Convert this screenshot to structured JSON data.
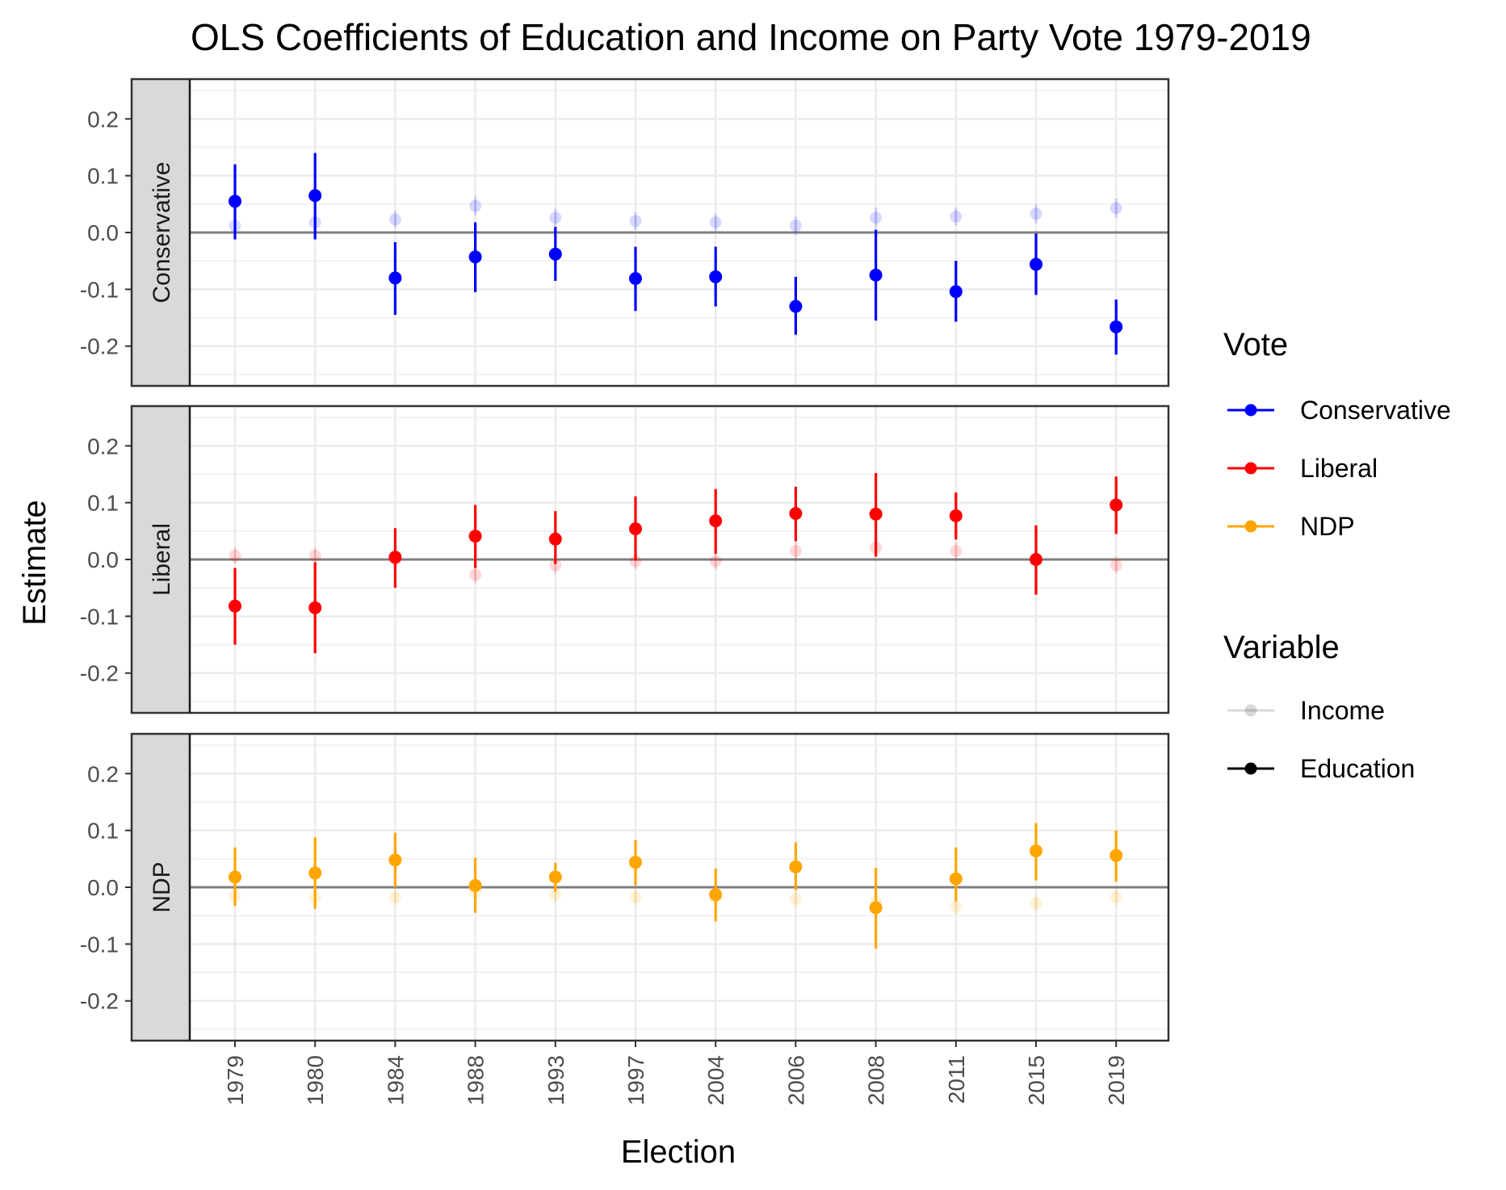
{
  "chart_data": {
    "type": "scatter",
    "title": "OLS Coefficients of Education and Income on Party Vote 1979-2019",
    "xlabel": "Election",
    "ylabel": "Estimate",
    "ylim": [
      -0.27,
      0.27
    ],
    "y_ticks": [
      "0.2",
      "0.1",
      "0.0",
      "-0.1",
      "-0.2"
    ],
    "y_tick_values": [
      0.2,
      0.1,
      0.0,
      -0.1,
      -0.2
    ],
    "categories": [
      "1979",
      "1980",
      "1984",
      "1988",
      "1993",
      "1997",
      "2004",
      "2006",
      "2008",
      "2011",
      "2015",
      "2019"
    ],
    "grid": true,
    "reference_line": 0,
    "legend": {
      "position": "right",
      "vote_title": "Vote",
      "vote_items": [
        {
          "label": "Conservative",
          "color": "#0000ff"
        },
        {
          "label": "Liberal",
          "color": "#ff0000"
        },
        {
          "label": "NDP",
          "color": "#ffa500"
        }
      ],
      "variable_title": "Variable",
      "variable_items": [
        {
          "label": "Income",
          "opacity": 0.15
        },
        {
          "label": "Education",
          "opacity": 1.0
        }
      ]
    },
    "panels": [
      {
        "name": "Conservative",
        "color": "#0000ff",
        "education": {
          "estimate": [
            0.055,
            0.065,
            -0.08,
            -0.043,
            -0.038,
            -0.081,
            -0.078,
            -0.13,
            -0.075,
            -0.104,
            -0.056,
            -0.166
          ],
          "lower": [
            -0.012,
            -0.012,
            -0.145,
            -0.105,
            -0.085,
            -0.138,
            -0.13,
            -0.18,
            -0.155,
            -0.157,
            -0.11,
            -0.215
          ],
          "upper": [
            0.12,
            0.14,
            -0.017,
            0.018,
            0.01,
            -0.025,
            -0.025,
            -0.078,
            0.005,
            -0.05,
            -0.002,
            -0.118
          ]
        },
        "income": {
          "estimate": [
            0.012,
            0.018,
            0.023,
            0.047,
            0.026,
            0.02,
            0.018,
            0.012,
            0.026,
            0.028,
            0.033,
            0.043
          ],
          "lower": [
            -0.004,
            0.002,
            0.008,
            0.03,
            0.01,
            0.004,
            0.002,
            -0.004,
            0.008,
            0.012,
            0.016,
            0.026
          ],
          "upper": [
            0.028,
            0.034,
            0.038,
            0.064,
            0.042,
            0.036,
            0.034,
            0.028,
            0.044,
            0.044,
            0.05,
            0.06
          ]
        }
      },
      {
        "name": "Liberal",
        "color": "#ff0000",
        "education": {
          "estimate": [
            -0.082,
            -0.085,
            0.004,
            0.041,
            0.036,
            0.054,
            0.068,
            0.081,
            0.08,
            0.077,
            0.0,
            0.096
          ],
          "lower": [
            -0.15,
            -0.165,
            -0.05,
            -0.015,
            -0.008,
            -0.002,
            0.01,
            0.032,
            0.005,
            0.035,
            -0.062,
            0.045
          ],
          "upper": [
            -0.015,
            -0.005,
            0.055,
            0.096,
            0.085,
            0.111,
            0.124,
            0.128,
            0.152,
            0.118,
            0.06,
            0.146
          ]
        },
        "income": {
          "estimate": [
            0.007,
            0.007,
            0.0,
            -0.027,
            -0.01,
            -0.003,
            -0.003,
            0.015,
            0.021,
            0.015,
            0.0,
            -0.01
          ],
          "lower": [
            -0.008,
            -0.008,
            -0.015,
            -0.042,
            -0.025,
            -0.018,
            -0.018,
            0.0,
            0.006,
            0.0,
            -0.015,
            -0.025
          ],
          "upper": [
            0.022,
            0.022,
            0.015,
            -0.012,
            0.005,
            0.012,
            0.012,
            0.03,
            0.036,
            0.03,
            0.015,
            0.005
          ]
        }
      },
      {
        "name": "NDP",
        "color": "#ffa500",
        "education": {
          "estimate": [
            0.018,
            0.025,
            0.048,
            0.003,
            0.018,
            0.044,
            -0.013,
            0.036,
            -0.036,
            0.015,
            0.064,
            0.056
          ],
          "lower": [
            -0.033,
            -0.038,
            0.0,
            -0.045,
            -0.008,
            0.003,
            -0.06,
            -0.005,
            -0.108,
            -0.025,
            0.012,
            0.01
          ],
          "upper": [
            0.07,
            0.088,
            0.096,
            0.052,
            0.043,
            0.083,
            0.033,
            0.079,
            0.034,
            0.07,
            0.113,
            0.1
          ]
        },
        "income": {
          "estimate": [
            -0.015,
            -0.018,
            -0.018,
            -0.008,
            -0.012,
            -0.018,
            -0.018,
            -0.02,
            -0.025,
            -0.033,
            -0.028,
            -0.018
          ],
          "lower": [
            -0.03,
            -0.033,
            -0.033,
            -0.023,
            -0.027,
            -0.033,
            -0.033,
            -0.035,
            -0.04,
            -0.048,
            -0.043,
            -0.033
          ],
          "upper": [
            0.0,
            -0.003,
            -0.003,
            0.007,
            0.003,
            -0.003,
            -0.003,
            -0.005,
            -0.01,
            -0.018,
            -0.013,
            -0.003
          ]
        }
      }
    ]
  }
}
